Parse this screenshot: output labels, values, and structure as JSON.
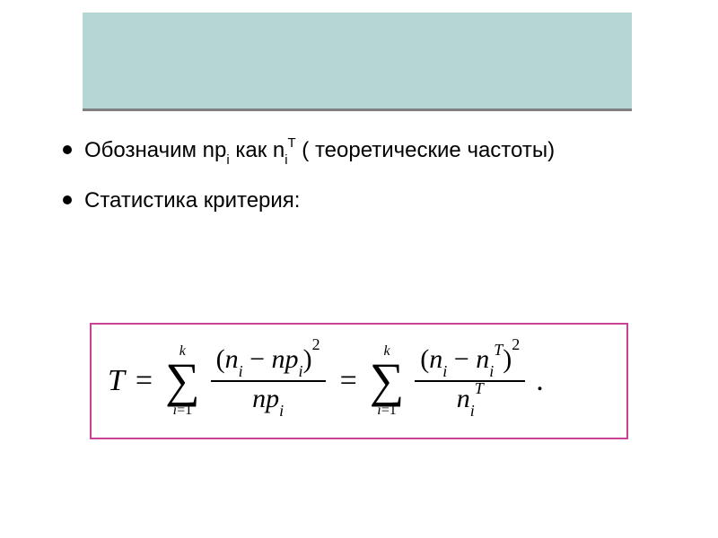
{
  "header": {
    "background_color": "#b6d6d6",
    "underline_color": "#808080"
  },
  "bullets": [
    {
      "prefix": "Обозначим np",
      "sub1": "i",
      "mid": " как n",
      "sub2": "i",
      "sup2": "T",
      "suffix": " ( теоретические частоты)"
    },
    {
      "text": "Статистика критерия:"
    }
  ],
  "formula": {
    "border_color": "#c94294",
    "lhs": "T",
    "sigma": {
      "upper": "k",
      "lower_var": "i",
      "lower_eq": "=",
      "lower_val": "1",
      "symbol": "∑"
    },
    "frac1": {
      "num_open": "(",
      "num_n": "n",
      "num_sub": "i",
      "num_minus": " − ",
      "num_np": "np",
      "num_sub2": "i",
      "num_close": ")",
      "num_pow": "2",
      "den_np": "np",
      "den_sub": "i"
    },
    "frac2": {
      "num_open": "(",
      "num_n": "n",
      "num_sub": "i",
      "num_minus": " − ",
      "num_n2": "n",
      "num_sub2": "i",
      "num_sup2": "T",
      "num_close": ")",
      "num_pow": "2",
      "den_n": "n",
      "den_sub": "i",
      "den_sup": "T"
    },
    "eq": "=",
    "period": "."
  },
  "colors": {
    "text": "#000000",
    "background": "#ffffff"
  },
  "fonts": {
    "body": "Arial",
    "formula": "Times New Roman"
  }
}
